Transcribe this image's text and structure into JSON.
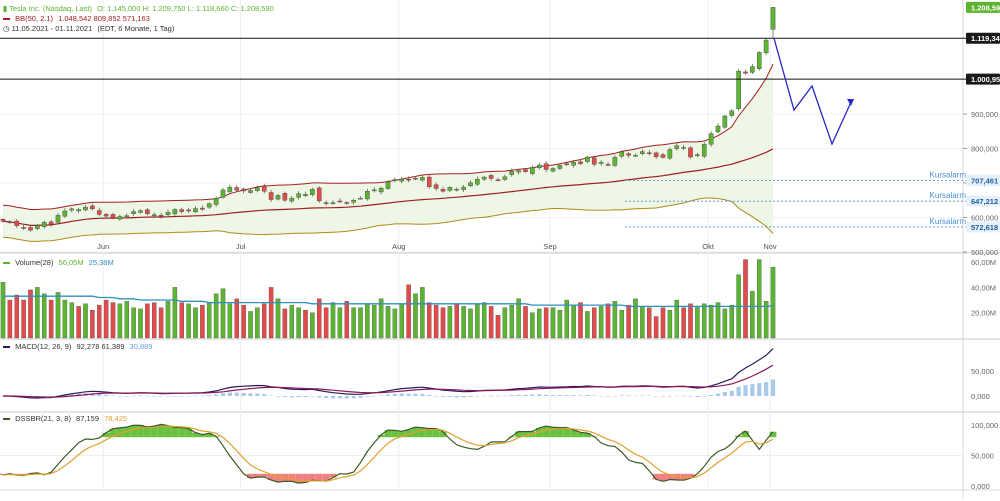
{
  "colors": {
    "up": "#5cb531",
    "down": "#e34a4a",
    "bb_upper": "#a02020",
    "bb_middle": "#a02020",
    "bb_lower": "#b08a1a",
    "bb_fill": "#eef6e6",
    "volume_avg": "#2f8fc0",
    "macd_line": "#2b1a5a",
    "macd_signal": "#8a1a5a",
    "macd_hist": "#a8c8ec",
    "dss_fast": "#3a5a2a",
    "dss_slow": "#e0a030",
    "dss_high_fill": "#6cc040",
    "dss_low_fill": "#f08080",
    "alarm_line": "#4a8fd8",
    "forecast": "#2828c8",
    "price_label_bg": "#1a1a1a",
    "last_price_bg": "#5cb531"
  },
  "legend": {
    "instrument": "Tesla Inc. (Nasdaq, Last)",
    "ohlc": "O: 1.145,000  H: 1.209,750  L: 1.118,660  C: 1.208,590",
    "bb_label": "BB(50, 2.1)",
    "bb_values": "1.048,542  809,852  571,163",
    "period": "11.05.2021 - 01.11.2021",
    "period_detail": "(EDT, 6 Monate, 1 Tag)",
    "volume_label": "Volume(28)",
    "volume_values": "56,05M",
    "volume_values2": "25,38M",
    "macd_label": "MACD(12, 26, 9)",
    "macd_values": "92,278  61,389",
    "macd_values2": "30,889",
    "dss_label": "DSSBR(21, 3, 8)",
    "dss_values": "87,159",
    "dss_values2": "78,425"
  },
  "months": [
    "Jun",
    "Jul",
    "Aug",
    "Sep",
    "Okt",
    "Nov"
  ],
  "price_axis_ticks": [
    "900,000",
    "800,000",
    "700,000",
    "600,000",
    "500,000"
  ],
  "price_tags": {
    "last": "1.208,590",
    "high_line": "1.119,345",
    "mid_line": "1.000,955",
    "alarm1": "707,461",
    "alarm2": "647,212",
    "alarm3": "572,618"
  },
  "alarm_text": "Kursalarm",
  "volume_ticks": [
    "60,00M",
    "40,00M",
    "20,00M"
  ],
  "macd_ticks": [
    "50,000",
    "0,000"
  ],
  "dss_ticks": [
    "100,000",
    "50,000",
    "0,000"
  ],
  "chart_data": {
    "type": "candlestick",
    "instrument": "Tesla Inc. (Nasdaq, Last)",
    "x_range": [
      "11.05.2021",
      "01.11.2021"
    ],
    "price_ylim": [
      500,
      1230
    ],
    "horizontal_lines": [
      1119.345,
      1000.955
    ],
    "alarms": [
      707.461,
      647.212,
      572.618
    ],
    "closes": [
      589,
      586,
      576,
      571,
      563,
      577,
      586,
      580,
      606,
      619,
      625,
      623,
      630,
      625,
      609,
      604,
      599,
      603,
      605,
      617,
      620,
      611,
      608,
      604,
      615,
      623,
      617,
      620,
      626,
      624,
      640,
      656,
      680,
      688,
      679,
      677,
      678,
      686,
      676,
      652,
      664,
      650,
      656,
      669,
      667,
      682,
      648,
      641,
      643,
      647,
      643,
      650,
      656,
      676,
      680,
      685,
      703,
      710,
      711,
      709,
      712,
      716,
      689,
      684,
      676,
      687,
      682,
      688,
      701,
      711,
      717,
      713,
      709,
      718,
      734,
      736,
      733,
      745,
      752,
      739,
      742,
      751,
      755,
      760,
      756,
      775,
      754,
      760,
      752,
      774,
      790,
      780,
      780,
      791,
      786,
      776,
      774,
      797,
      808,
      803,
      775,
      782,
      812,
      843,
      865,
      894,
      909,
      1024,
      1018,
      1037,
      1078,
      1114,
      1208.59
    ],
    "volume_m": [
      44,
      30,
      34,
      30,
      38,
      40,
      35,
      30,
      36,
      30,
      28,
      25,
      27,
      22,
      26,
      30,
      28,
      27,
      29,
      24,
      23,
      27,
      28,
      24,
      29,
      40,
      28,
      27,
      24,
      26,
      28,
      35,
      39,
      27,
      31,
      26,
      21,
      24,
      27,
      40,
      31,
      23,
      26,
      24,
      22,
      20,
      31,
      24,
      28,
      24,
      29,
      24,
      24,
      27,
      26,
      31,
      25,
      23,
      27,
      42,
      35,
      40,
      28,
      26,
      24,
      25,
      27,
      25,
      23,
      27,
      28,
      25,
      18,
      24,
      26,
      31,
      25,
      20,
      23,
      24,
      24,
      22,
      30,
      26,
      28,
      21,
      24,
      25,
      27,
      29,
      22,
      26,
      31,
      25,
      24,
      17,
      24,
      22,
      30,
      24,
      27,
      25,
      27,
      26,
      28,
      23,
      26,
      50,
      62,
      37,
      62,
      29,
      56.05
    ],
    "volume_avg_m": [
      33,
      33,
      33,
      33,
      33,
      33,
      33,
      33,
      33,
      33,
      33,
      33,
      33,
      33,
      32,
      32,
      32,
      31,
      31,
      31,
      30,
      30,
      30,
      30,
      30,
      30,
      29,
      29,
      29,
      29,
      28,
      28,
      28,
      28,
      28,
      28,
      28,
      28,
      28,
      28,
      28,
      28,
      28,
      28,
      28,
      27,
      27,
      27,
      27,
      27,
      27,
      27,
      27,
      27,
      27,
      27,
      27,
      27,
      27,
      27,
      27,
      27,
      27,
      27,
      27,
      27,
      27,
      27,
      27,
      27,
      27,
      27,
      27,
      27,
      27,
      27,
      27,
      26,
      26,
      26,
      26,
      26,
      26,
      26,
      26,
      26,
      26,
      26,
      26,
      26,
      26,
      25,
      25,
      25,
      25,
      25,
      25,
      25,
      25,
      25,
      25,
      25,
      25,
      25,
      25,
      25,
      25,
      25,
      25,
      25,
      25,
      25,
      25.38
    ]
  }
}
